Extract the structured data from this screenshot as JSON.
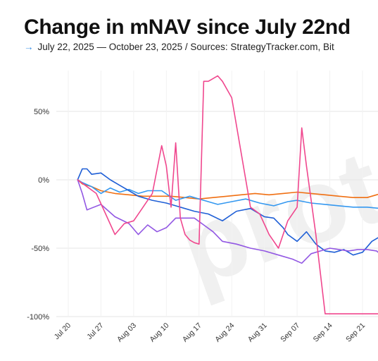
{
  "header": {
    "title": "Change in mNAV since July 22nd",
    "subtitle_arrow": "→",
    "subtitle": "July 22, 2025 — October 23, 2025 / Sources: StrategyTracker.com, Bit"
  },
  "watermark": {
    "text": "proto"
  },
  "colors": {
    "pink": "#f0478e",
    "orange": "#f06f12",
    "lightblue": "#3498f0",
    "blue": "#1f5fd6",
    "purple": "#9257e3",
    "grid": "#e6e6e6"
  },
  "chart_data": {
    "type": "line",
    "title": "Change in mNAV since July 22nd",
    "xlabel": "",
    "ylabel": "",
    "ylim": [
      -100,
      75
    ],
    "xlim": [
      "2025-07-20",
      "2025-09-25"
    ],
    "grid": true,
    "y_ticks": [
      50,
      0,
      -50,
      -100
    ],
    "y_tick_labels": [
      "50%",
      "0%",
      "-50%",
      "-100%"
    ],
    "x_tick_dates": [
      "2025-07-20",
      "2025-07-27",
      "2025-08-03",
      "2025-08-10",
      "2025-08-17",
      "2025-08-24",
      "2025-08-31",
      "2025-09-07",
      "2025-09-14",
      "2025-09-21"
    ],
    "x_tick_labels": [
      "Jul 20",
      "Jul 27",
      "Aug 03",
      "Aug 10",
      "Aug 17",
      "Aug 24",
      "Aug 31",
      "Sep 07",
      "Sep 14",
      "Sep 21"
    ],
    "series": [
      {
        "color": "#f06f12",
        "x": [
          "2025-07-22",
          "2025-07-23",
          "2025-07-25",
          "2025-07-27",
          "2025-07-30",
          "2025-08-02",
          "2025-08-05",
          "2025-08-08",
          "2025-08-11",
          "2025-08-14",
          "2025-08-17",
          "2025-08-20",
          "2025-08-23",
          "2025-08-26",
          "2025-08-29",
          "2025-09-01",
          "2025-09-04",
          "2025-09-07",
          "2025-09-10",
          "2025-09-13",
          "2025-09-16",
          "2025-09-19",
          "2025-09-22",
          "2025-09-24",
          "2025-09-25"
        ],
        "y": [
          0,
          -3,
          -5,
          -8,
          -10,
          -11,
          -12,
          -12,
          -12,
          -13,
          -14,
          -13,
          -12,
          -11,
          -10,
          -11,
          -10,
          -9,
          -10,
          -11,
          -12,
          -13,
          -13,
          -11,
          -10
        ]
      },
      {
        "color": "#3498f0",
        "x": [
          "2025-07-22",
          "2025-07-23",
          "2025-07-25",
          "2025-07-27",
          "2025-07-29",
          "2025-07-31",
          "2025-08-02",
          "2025-08-04",
          "2025-08-06",
          "2025-08-09",
          "2025-08-12",
          "2025-08-15",
          "2025-08-18",
          "2025-08-21",
          "2025-08-24",
          "2025-08-27",
          "2025-08-30",
          "2025-09-02",
          "2025-09-05",
          "2025-09-07",
          "2025-09-10",
          "2025-09-13",
          "2025-09-16",
          "2025-09-19",
          "2025-09-22",
          "2025-09-25"
        ],
        "y": [
          0,
          -2,
          -5,
          -10,
          -6,
          -9,
          -7,
          -10,
          -8,
          -8,
          -15,
          -12,
          -15,
          -18,
          -16,
          -14,
          -17,
          -19,
          -16,
          -15,
          -17,
          -18,
          -19,
          -20,
          -20,
          -21
        ]
      },
      {
        "color": "#1f5fd6",
        "x": [
          "2025-07-22",
          "2025-07-23",
          "2025-07-24",
          "2025-07-25",
          "2025-07-27",
          "2025-07-29",
          "2025-07-31",
          "2025-08-02",
          "2025-08-04",
          "2025-08-07",
          "2025-08-10",
          "2025-08-13",
          "2025-08-16",
          "2025-08-19",
          "2025-08-22",
          "2025-08-25",
          "2025-08-28",
          "2025-08-31",
          "2025-09-02",
          "2025-09-04",
          "2025-09-05",
          "2025-09-07",
          "2025-09-09",
          "2025-09-11",
          "2025-09-13",
          "2025-09-15",
          "2025-09-17",
          "2025-09-19",
          "2025-09-21",
          "2025-09-23",
          "2025-09-25"
        ],
        "y": [
          0,
          8,
          8,
          4,
          5,
          0,
          -4,
          -8,
          -12,
          -15,
          -17,
          -20,
          -23,
          -25,
          -30,
          -23,
          -21,
          -27,
          -28,
          -35,
          -40,
          -45,
          -38,
          -47,
          -52,
          -53,
          -51,
          -55,
          -53,
          -45,
          -41
        ]
      },
      {
        "color": "#9257e3",
        "x": [
          "2025-07-22",
          "2025-07-23",
          "2025-07-24",
          "2025-07-27",
          "2025-07-30",
          "2025-08-02",
          "2025-08-04",
          "2025-08-06",
          "2025-08-08",
          "2025-08-10",
          "2025-08-12",
          "2025-08-14",
          "2025-08-16",
          "2025-08-18",
          "2025-08-20",
          "2025-08-22",
          "2025-08-25",
          "2025-08-28",
          "2025-08-31",
          "2025-09-03",
          "2025-09-06",
          "2025-09-08",
          "2025-09-10",
          "2025-09-12",
          "2025-09-14",
          "2025-09-16",
          "2025-09-18",
          "2025-09-20",
          "2025-09-22",
          "2025-09-24",
          "2025-09-25"
        ],
        "y": [
          0,
          -10,
          -22,
          -18,
          -27,
          -32,
          -40,
          -33,
          -38,
          -35,
          -28,
          -28,
          -28,
          -33,
          -38,
          -45,
          -47,
          -50,
          -52,
          -55,
          -58,
          -61,
          -54,
          -52,
          -50,
          -51,
          -52,
          -51,
          -51,
          -52,
          -55
        ]
      },
      {
        "color": "#f0478e",
        "x": [
          "2025-07-22",
          "2025-07-24",
          "2025-07-26",
          "2025-07-28",
          "2025-07-30",
          "2025-08-01",
          "2025-08-03",
          "2025-08-05",
          "2025-08-07",
          "2025-08-09",
          "2025-08-10",
          "2025-08-11",
          "2025-08-12",
          "2025-08-13",
          "2025-08-14",
          "2025-08-15",
          "2025-08-16",
          "2025-08-17",
          "2025-08-18",
          "2025-08-19",
          "2025-08-20",
          "2025-08-21",
          "2025-08-22",
          "2025-08-24",
          "2025-08-26",
          "2025-08-28",
          "2025-08-30",
          "2025-09-01",
          "2025-09-03",
          "2025-09-05",
          "2025-09-07",
          "2025-09-08",
          "2025-09-09",
          "2025-09-11",
          "2025-09-13",
          "2025-09-15",
          "2025-09-17",
          "2025-09-19",
          "2025-09-21",
          "2025-09-23",
          "2025-09-25"
        ],
        "y": [
          0,
          -5,
          -10,
          -25,
          -40,
          -32,
          -30,
          -20,
          -10,
          25,
          10,
          -20,
          27,
          -28,
          -40,
          -44,
          -46,
          -47,
          72,
          72,
          74,
          76,
          72,
          60,
          20,
          -20,
          -25,
          -40,
          -50,
          -30,
          -20,
          38,
          10,
          -40,
          -98,
          -98,
          -98,
          -98,
          -98,
          -98,
          -98
        ]
      }
    ]
  }
}
